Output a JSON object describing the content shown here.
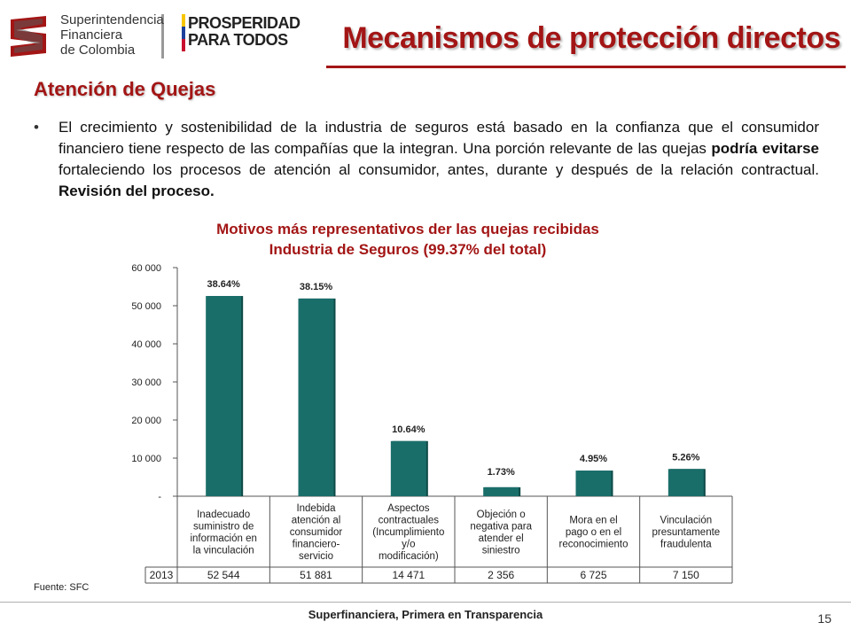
{
  "header": {
    "sfc_logo_lines": [
      "Superintendencia",
      "Financiera",
      "de Colombia"
    ],
    "prosperidad_lines": [
      "PROSPERIDAD",
      "PARA TODOS"
    ],
    "title": "Mecanismos de protección directos",
    "section_title": "Atención de Quejas"
  },
  "bullet": {
    "part1": "El crecimiento y sostenibilidad de la industria de seguros está basado en la confianza que el consumidor financiero tiene respecto de las compañías que la integran. Una porción relevante de las quejas ",
    "bold1": "podría evitarse",
    "part2": " fortaleciendo los procesos de atención al consumidor, antes, durante y después de la relación contractual. ",
    "bold2": "Revisión del proceso."
  },
  "chart_data": {
    "type": "bar",
    "title_lines": [
      "Motivos más representativos der las quejas recibidas",
      "Industria de Seguros (99.37% del total)"
    ],
    "categories": [
      [
        "Inadecuado",
        "suministro de",
        "información en",
        "la vinculación"
      ],
      [
        "Indebida",
        "atención al",
        "consumidor",
        "financiero-",
        "servicio"
      ],
      [
        "Aspectos",
        "contractuales",
        "(Incumplimiento",
        "y/o",
        "modificación)"
      ],
      [
        "Objeción o",
        "negativa para",
        "atender el",
        "siniestro"
      ],
      [
        "Mora en el",
        "pago o en el",
        "reconocimiento"
      ],
      [
        "Vinculación",
        "presuntamente",
        "fraudulenta"
      ]
    ],
    "series": [
      {
        "name": "2013",
        "values": [
          52544,
          51881,
          14471,
          2356,
          6725,
          7150
        ],
        "value_labels": [
          "52 544",
          "51 881",
          "14 471",
          "2 356",
          "6 725",
          "7 150"
        ]
      }
    ],
    "data_labels": [
      "38.64%",
      "38.15%",
      "10.64%",
      "1.73%",
      "4.95%",
      "5.26%"
    ],
    "ylim": [
      0,
      60000
    ],
    "yticks": [
      0,
      10000,
      20000,
      30000,
      40000,
      50000,
      60000
    ],
    "ytick_labels": [
      "-",
      "10 000",
      "20 000",
      "30 000",
      "40 000",
      "50 000",
      "60 000"
    ],
    "bar_color": "#1a6e6a",
    "grid": false,
    "legend": "data-table"
  },
  "source": "Fuente: SFC",
  "footer": {
    "text": "Superfinanciera, Primera en Transparencia",
    "page": "15"
  }
}
